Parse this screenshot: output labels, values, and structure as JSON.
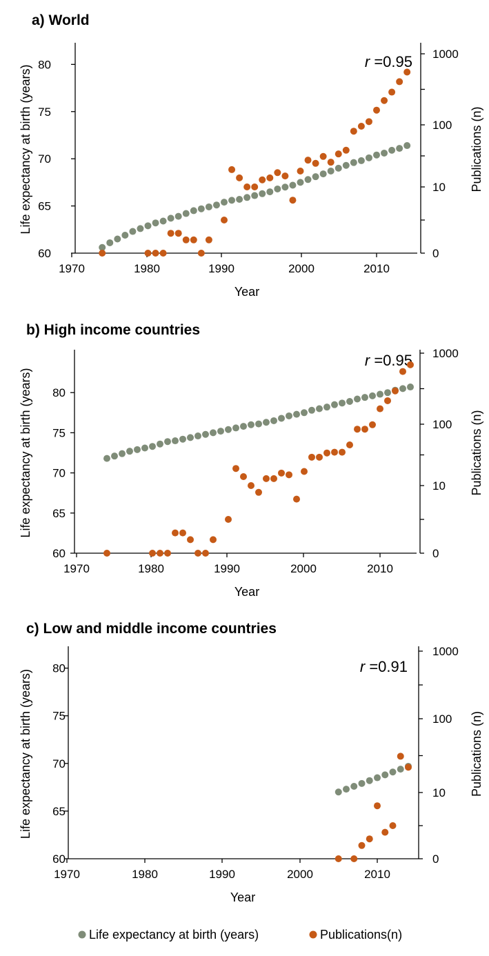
{
  "colors": {
    "life": "#7f8c78",
    "pubs": "#c65a17",
    "axis": "#000000"
  },
  "legend": {
    "life_label": "Life expectancy at birth (years)",
    "pubs_label": "Publications(n)"
  },
  "chart_data": [
    {
      "type": "scatter",
      "title": "a) World",
      "xlabel": "Year",
      "ylabel_left": "Life expectancy at birth (years)",
      "ylabel_right": "Publications (n)",
      "xlim": [
        1970,
        2015
      ],
      "x_ticks": [
        "1970",
        "1980",
        "1990",
        "2000",
        "2010"
      ],
      "ylim_left": [
        60,
        82
      ],
      "y_ticks_left": [
        "60",
        "65",
        "70",
        "75",
        "80"
      ],
      "y_ticks_right": [
        "0",
        "10",
        "100",
        "1000"
      ],
      "r_prefix": "r",
      "r_text": " =0.95",
      "life_expectancy": {
        "name": "Life expectancy at birth (years)",
        "x": [
          1974,
          1975,
          1976,
          1977,
          1978,
          1979,
          1980,
          1981,
          1982,
          1983,
          1984,
          1985,
          1986,
          1987,
          1988,
          1989,
          1990,
          1991,
          1992,
          1993,
          1994,
          1995,
          1996,
          1997,
          1998,
          1999,
          2000,
          2001,
          2002,
          2003,
          2004,
          2005,
          2006,
          2007,
          2008,
          2009,
          2010,
          2011,
          2012,
          2013,
          2014
        ],
        "y": [
          60.6,
          61.1,
          61.5,
          61.9,
          62.3,
          62.6,
          62.9,
          63.2,
          63.4,
          63.7,
          63.9,
          64.2,
          64.5,
          64.7,
          64.9,
          65.1,
          65.4,
          65.6,
          65.7,
          65.9,
          66.1,
          66.3,
          66.5,
          66.8,
          67.0,
          67.2,
          67.5,
          67.8,
          68.1,
          68.4,
          68.7,
          69.0,
          69.3,
          69.6,
          69.8,
          70.1,
          70.4,
          70.6,
          70.9,
          71.1,
          71.4
        ]
      },
      "publications": {
        "name": "Publications(n)",
        "x": [
          1974,
          1980,
          1981,
          1982,
          1983,
          1984,
          1985,
          1986,
          1987,
          1988,
          1990,
          1991,
          1992,
          1993,
          1994,
          1995,
          1996,
          1997,
          1998,
          1999,
          2000,
          2001,
          2002,
          2003,
          2004,
          2005,
          2006,
          2007,
          2008,
          2009,
          2010,
          2011,
          2012,
          2013,
          2014
        ],
        "y": [
          0,
          0,
          0,
          0,
          3,
          3,
          2,
          2,
          0,
          2,
          5,
          19,
          14,
          10,
          10,
          13,
          14,
          17,
          15,
          8,
          18,
          27,
          24,
          31,
          25,
          34,
          39,
          79,
          95,
          111,
          161,
          220,
          289,
          405,
          553
        ]
      }
    },
    {
      "type": "scatter",
      "title": "b) High income countries",
      "xlabel": "Year",
      "ylabel_left": "Life expectancy at birth (years)",
      "ylabel_right": "Publications (n)",
      "xlim": [
        1970,
        2015
      ],
      "x_ticks": [
        "1970",
        "1980",
        "1990",
        "2000",
        "2010"
      ],
      "ylim_left": [
        60,
        85
      ],
      "y_ticks_left": [
        "60",
        "65",
        "70",
        "75",
        "80"
      ],
      "y_ticks_right": [
        "0",
        "10",
        "100",
        "1000"
      ],
      "r_prefix": "r",
      "r_text": " =0.95",
      "life_expectancy": {
        "name": "Life expectancy at birth (years)",
        "x": [
          1974,
          1975,
          1976,
          1977,
          1978,
          1979,
          1980,
          1981,
          1982,
          1983,
          1984,
          1985,
          1986,
          1987,
          1988,
          1989,
          1990,
          1991,
          1992,
          1993,
          1994,
          1995,
          1996,
          1997,
          1998,
          1999,
          2000,
          2001,
          2002,
          2003,
          2004,
          2005,
          2006,
          2007,
          2008,
          2009,
          2010,
          2011,
          2012,
          2013,
          2014
        ],
        "y": [
          71.8,
          72.1,
          72.4,
          72.7,
          72.9,
          73.1,
          73.3,
          73.6,
          73.9,
          74.0,
          74.2,
          74.4,
          74.6,
          74.8,
          75.0,
          75.2,
          75.4,
          75.6,
          75.8,
          76.0,
          76.1,
          76.3,
          76.5,
          76.8,
          77.1,
          77.3,
          77.5,
          77.8,
          78.0,
          78.2,
          78.5,
          78.7,
          78.9,
          79.2,
          79.4,
          79.6,
          79.8,
          80.0,
          80.3,
          80.5,
          80.7
        ]
      },
      "publications": {
        "name": "Publications(n)",
        "x": [
          1974,
          1980,
          1981,
          1982,
          1983,
          1984,
          1985,
          1986,
          1987,
          1988,
          1990,
          1991,
          1992,
          1993,
          1994,
          1995,
          1996,
          1997,
          1998,
          1999,
          2000,
          2001,
          2002,
          2003,
          2004,
          2005,
          2006,
          2007,
          2008,
          2009,
          2010,
          2011,
          2012,
          2013,
          2014
        ],
        "y": [
          0,
          0,
          0,
          0,
          3,
          3,
          2,
          0,
          0,
          2,
          5,
          19,
          14,
          10,
          9,
          13,
          13,
          16,
          15,
          8,
          17,
          29,
          29,
          34,
          35,
          35,
          46,
          83,
          83,
          98,
          165,
          214,
          294,
          552,
          686
        ]
      }
    },
    {
      "type": "scatter",
      "title": "c) Low and middle income countries",
      "xlabel": "Year",
      "ylabel_left": "Life expectancy at birth (years)",
      "ylabel_right": "Publications (n)",
      "xlim": [
        1970,
        2015
      ],
      "x_ticks": [
        "1970",
        "1980",
        "1990",
        "2000",
        "2010"
      ],
      "ylim_left": [
        60,
        82
      ],
      "y_ticks_left": [
        "60",
        "65",
        "70",
        "75",
        "80"
      ],
      "y_ticks_right": [
        "0",
        "10",
        "100",
        "1000"
      ],
      "r_prefix": "r",
      "r_text": " =0.91",
      "life_expectancy": {
        "name": "Life expectancy at birth (years)",
        "x": [
          2005,
          2006,
          2007,
          2008,
          2009,
          2010,
          2011,
          2012,
          2013,
          2014
        ],
        "y": [
          67.0,
          67.3,
          67.6,
          67.9,
          68.2,
          68.5,
          68.8,
          69.1,
          69.4,
          69.7
        ]
      },
      "publications": {
        "name": "Publications(n)",
        "x": [
          2005,
          2007,
          2008,
          2009,
          2010,
          2011,
          2012,
          2013,
          2014
        ],
        "y": [
          0,
          0,
          2,
          3,
          8,
          4,
          5,
          31,
          22
        ]
      }
    }
  ]
}
